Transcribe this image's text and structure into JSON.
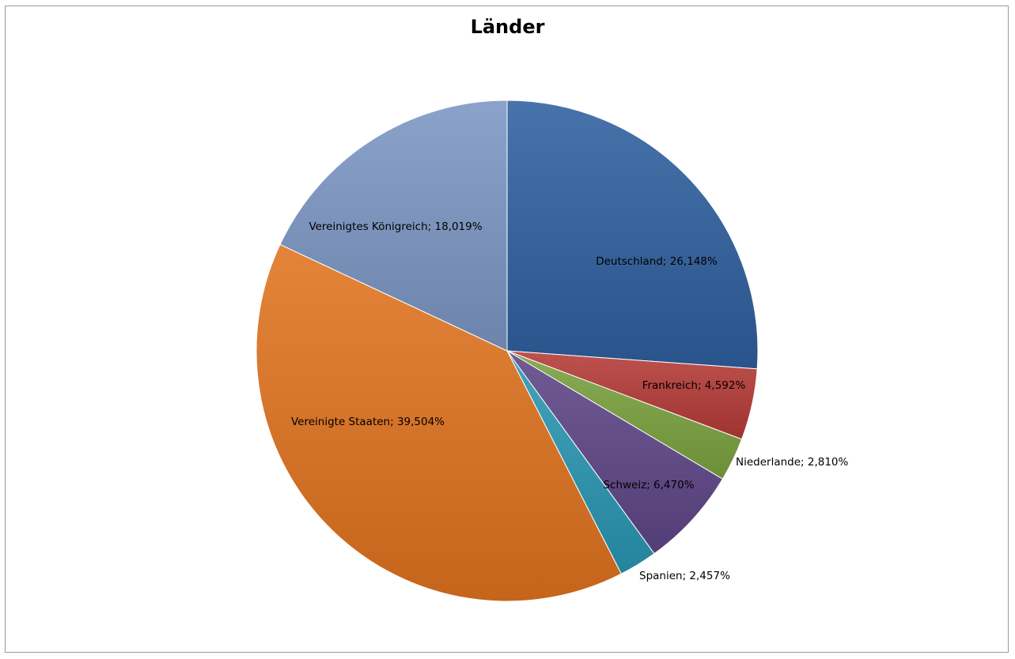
{
  "chart_data": {
    "type": "pie",
    "title": "Länder",
    "slices": [
      {
        "name": "Deutschland",
        "value": 26.148,
        "label": "Deutschland; 26,148%",
        "color": "#2f5f9e"
      },
      {
        "name": "Frankreich",
        "value": 4.592,
        "label": "Frankreich; 4,592%",
        "color": "#b53a36"
      },
      {
        "name": "Niederlande",
        "value": 2.81,
        "label": "Niederlande; 2,810%",
        "color": "#7aa13e"
      },
      {
        "name": "Schweiz",
        "value": 6.47,
        "label": "Schweiz; 6,470%",
        "color": "#5e4587"
      },
      {
        "name": "Spanien",
        "value": 2.457,
        "label": "Spanien; 2,457%",
        "color": "#2996b2"
      },
      {
        "name": "Vereinigte Staaten",
        "value": 39.504,
        "label": "Vereinigte Staaten; 39,504%",
        "color": "#e0731f"
      },
      {
        "name": "Vereinigtes Königreich",
        "value": 18.019,
        "label": "Vereinigtes Königreich; 18,019%",
        "color": "#7b96c4"
      }
    ],
    "start_angle": "12 o'clock",
    "direction": "clockwise",
    "legend": "none",
    "data_labels": "category; percentage"
  }
}
